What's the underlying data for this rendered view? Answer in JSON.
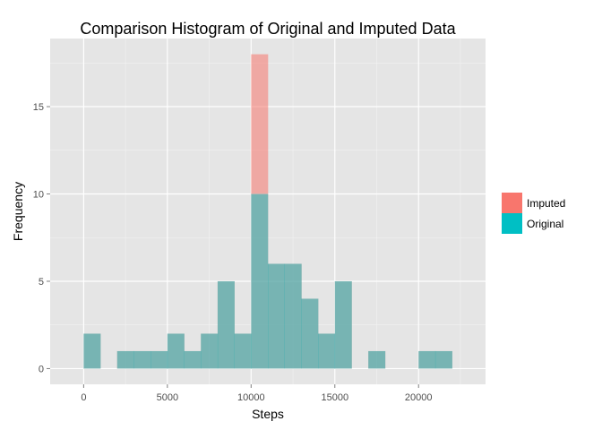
{
  "chart_data": {
    "type": "bar",
    "subtype": "overlapping-histogram",
    "title": "Comparison Histogram of Original and Imputed Data",
    "xlabel": "Steps",
    "ylabel": "Frequency",
    "xlim": [
      -2000,
      24000
    ],
    "ylim": [
      -0.9,
      18.9
    ],
    "xticks": [
      0,
      5000,
      10000,
      15000,
      20000
    ],
    "xtick_labels": [
      "0",
      "5000",
      "10000",
      "15000",
      "20000"
    ],
    "yticks": [
      0,
      5,
      10,
      15
    ],
    "ytick_labels": [
      "0",
      "5",
      "10",
      "15"
    ],
    "grid": true,
    "legend_position": "right",
    "bin_width": 1000,
    "bins": [
      0,
      1000,
      2000,
      3000,
      4000,
      5000,
      6000,
      7000,
      8000,
      9000,
      10000,
      11000,
      12000,
      13000,
      14000,
      15000,
      16000,
      17000,
      18000,
      19000,
      20000,
      21000
    ],
    "series": [
      {
        "name": "Imputed",
        "color": "#F8766D",
        "values": [
          2,
          0,
          1,
          1,
          1,
          2,
          1,
          2,
          5,
          2,
          18,
          6,
          6,
          4,
          2,
          5,
          0,
          1,
          0,
          0,
          1,
          1
        ]
      },
      {
        "name": "Original",
        "color": "#00BFC4",
        "values": [
          2,
          0,
          1,
          1,
          1,
          2,
          1,
          2,
          5,
          2,
          10,
          6,
          6,
          4,
          2,
          5,
          0,
          1,
          0,
          0,
          1,
          1
        ]
      }
    ]
  }
}
